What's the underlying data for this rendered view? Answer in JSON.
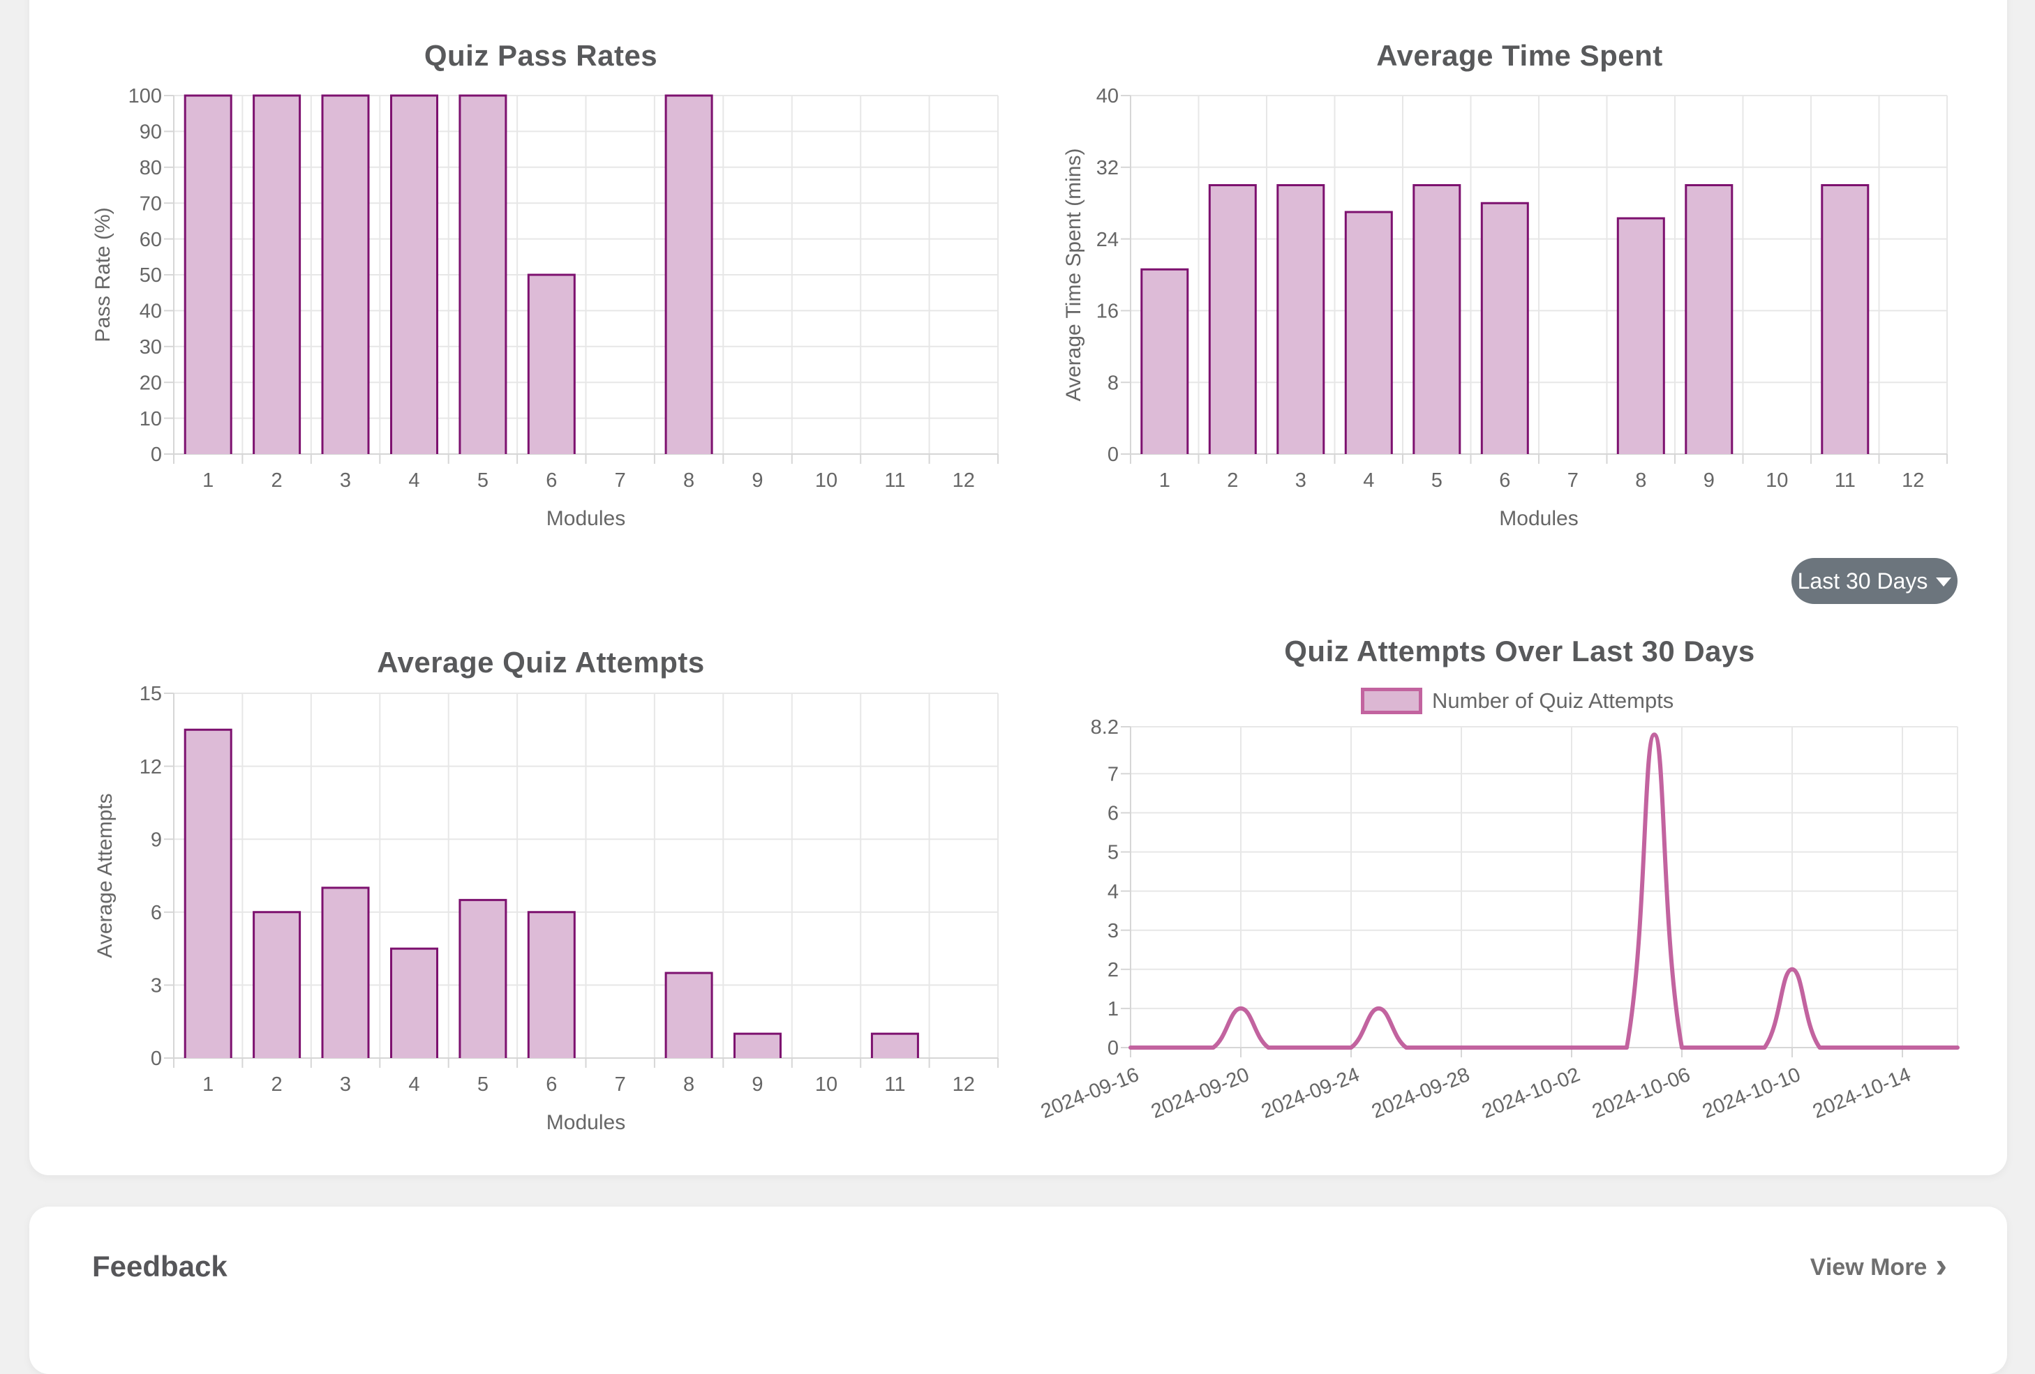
{
  "page": {
    "background_color": "#f0f0f0",
    "card_color": "#ffffff"
  },
  "colors": {
    "bar_fill": "#ddbbd7",
    "bar_border": "#7d116f",
    "line": "#c2639f",
    "legend_fill": "#dcb7d3",
    "grid": "#e7e7e7",
    "axis": "#d6d6d6",
    "tick_text": "#666666",
    "title_text": "#58595b",
    "button_bg": "#6c757d",
    "button_text": "#ffffff"
  },
  "filter_button": {
    "label": "Last 30 Days"
  },
  "feedback": {
    "title": "Feedback",
    "view_more": "View More",
    "chevron": "›"
  },
  "chart_data": [
    {
      "id": "quiz-pass-rates",
      "type": "bar",
      "title": "Quiz Pass Rates",
      "xlabel": "Modules",
      "ylabel": "Pass Rate (%)",
      "categories": [
        "1",
        "2",
        "3",
        "4",
        "5",
        "6",
        "7",
        "8",
        "9",
        "10",
        "11",
        "12"
      ],
      "values": [
        100,
        100,
        100,
        100,
        100,
        50,
        0,
        100,
        0,
        0,
        0,
        0
      ],
      "ylim": [
        0,
        100
      ],
      "yticks": [
        0,
        10,
        20,
        30,
        40,
        50,
        60,
        70,
        80,
        90,
        100
      ],
      "grid": true,
      "legend_position": "none"
    },
    {
      "id": "average-time-spent",
      "type": "bar",
      "title": "Average Time Spent",
      "xlabel": "Modules",
      "ylabel": "Average Time Spent (mins)",
      "categories": [
        "1",
        "2",
        "3",
        "4",
        "5",
        "6",
        "7",
        "8",
        "9",
        "10",
        "11",
        "12"
      ],
      "values": [
        20.6,
        30,
        30,
        27,
        30,
        28,
        0,
        26.3,
        30,
        0,
        30,
        0
      ],
      "ylim": [
        0,
        40
      ],
      "yticks": [
        0,
        8,
        16,
        24,
        32,
        40
      ],
      "grid": true,
      "legend_position": "none"
    },
    {
      "id": "average-quiz-attempts",
      "type": "bar",
      "title": "Average Quiz Attempts",
      "xlabel": "Modules",
      "ylabel": "Average Attempts",
      "categories": [
        "1",
        "2",
        "3",
        "4",
        "5",
        "6",
        "7",
        "8",
        "9",
        "10",
        "11",
        "12"
      ],
      "values": [
        13.5,
        6,
        7,
        4.5,
        6.5,
        6,
        0,
        3.5,
        1,
        0,
        1,
        0
      ],
      "ylim": [
        0,
        15
      ],
      "yticks": [
        0,
        3,
        6,
        9,
        12,
        15
      ],
      "grid": true,
      "legend_position": "none"
    },
    {
      "id": "attempts-over-30-days",
      "type": "line",
      "title": "Quiz Attempts Over Last 30 Days",
      "legend": "Number of Quiz Attempts",
      "legend_position": "top",
      "x": [
        "2024-09-16",
        "2024-09-17",
        "2024-09-18",
        "2024-09-19",
        "2024-09-20",
        "2024-09-21",
        "2024-09-22",
        "2024-09-23",
        "2024-09-24",
        "2024-09-25",
        "2024-09-26",
        "2024-09-27",
        "2024-09-28",
        "2024-09-29",
        "2024-09-30",
        "2024-10-01",
        "2024-10-02",
        "2024-10-03",
        "2024-10-04",
        "2024-10-05",
        "2024-10-06",
        "2024-10-07",
        "2024-10-08",
        "2024-10-09",
        "2024-10-10",
        "2024-10-11",
        "2024-10-12",
        "2024-10-13",
        "2024-10-14",
        "2024-10-15",
        "2024-10-16"
      ],
      "values": [
        0,
        0,
        0,
        0,
        1,
        0,
        0,
        0,
        0,
        1,
        0,
        0,
        0,
        0,
        0,
        0,
        0,
        0,
        0,
        8,
        0,
        0,
        0,
        0,
        2,
        0,
        0,
        0,
        0,
        0,
        0
      ],
      "ylim": [
        0,
        8.2
      ],
      "yticks": [
        0,
        1,
        2,
        3,
        4,
        5,
        6,
        7,
        8.2
      ],
      "xtick_every": 4,
      "grid": true
    }
  ]
}
